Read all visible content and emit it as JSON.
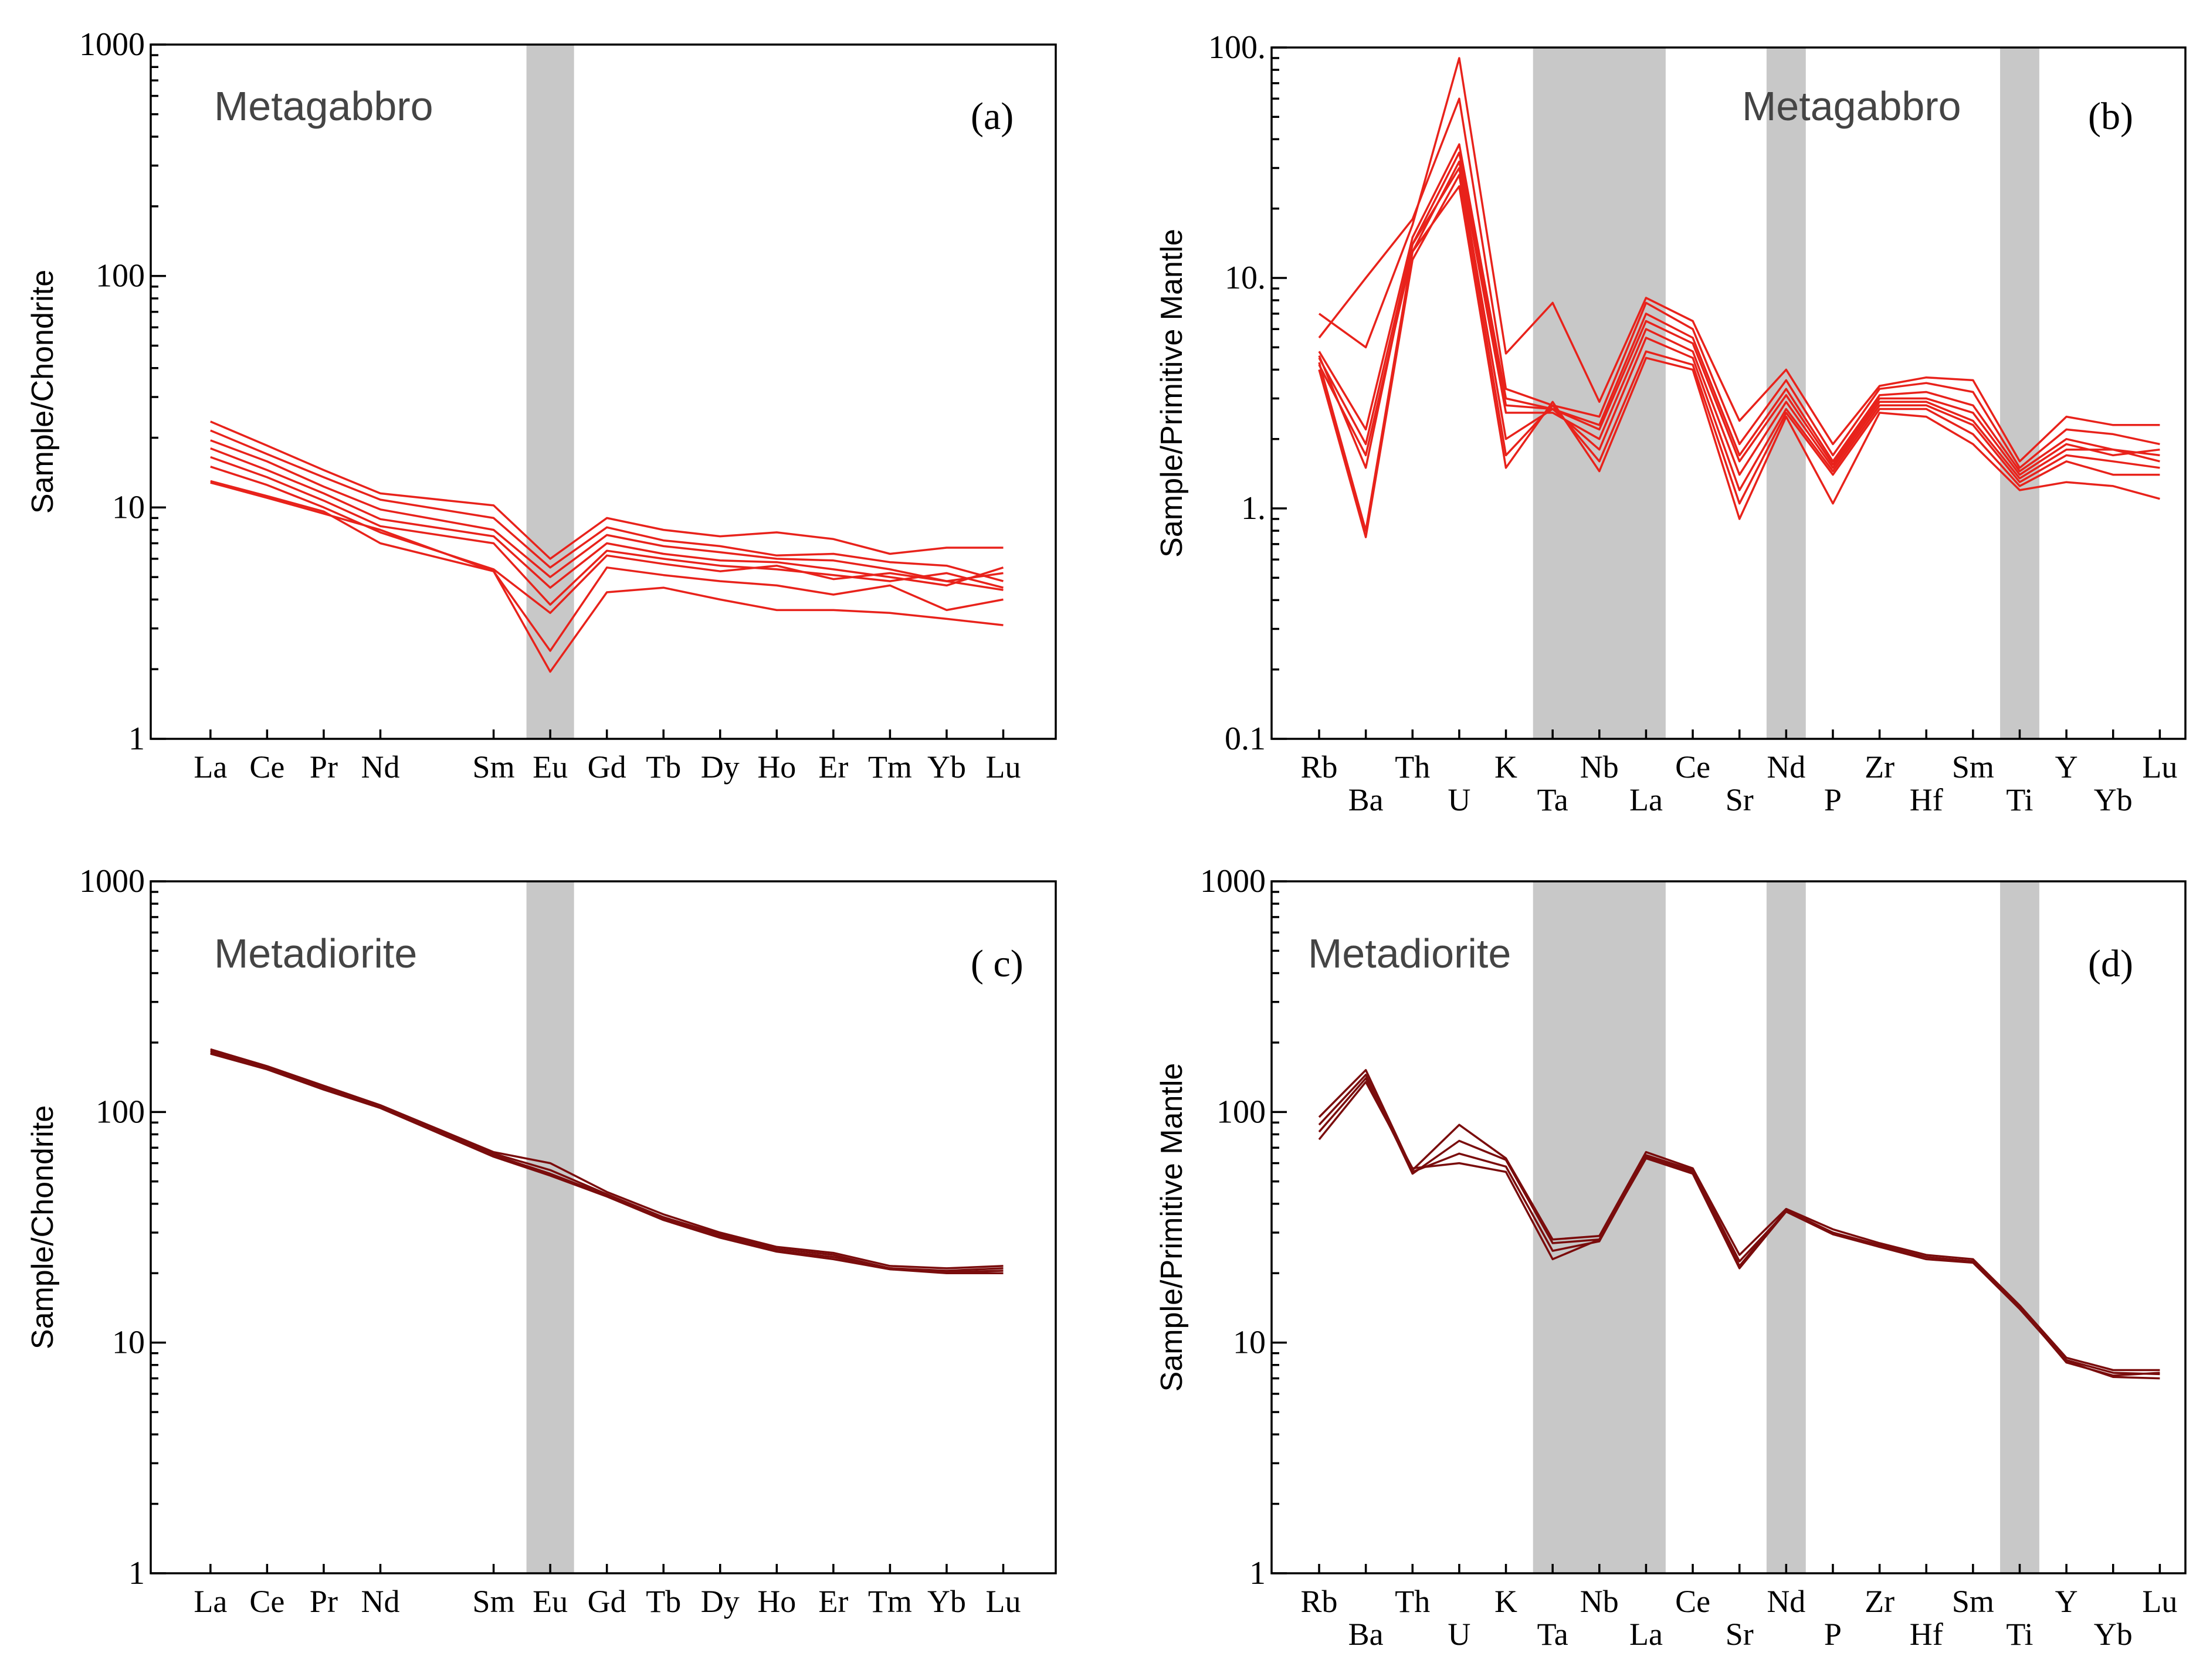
{
  "chart_data": [
    {
      "type": "line",
      "id": "a",
      "panel_label": "(a)",
      "rock_label": "Metagabbro",
      "ylabel": "Sample/Chondrite",
      "yscale": "log",
      "ylim": [
        1,
        1000
      ],
      "y_ticks": [
        "1",
        "10",
        "100",
        "1000"
      ],
      "x": [
        "La",
        "Ce",
        "Pr",
        "Nd",
        "Sm",
        "Eu",
        "Gd",
        "Tb",
        "Dy",
        "Ho",
        "Er",
        "Tm",
        "Yb",
        "Lu"
      ],
      "highlight": [
        "Eu"
      ],
      "color": "#e8221b",
      "series": [
        {
          "name": "s1",
          "values": [
            23.5,
            18.5,
            14.5,
            11.5,
            10.2,
            6.0,
            9.0,
            8.0,
            7.5,
            7.8,
            7.3,
            6.3,
            6.7,
            6.7
          ]
        },
        {
          "name": "s2",
          "values": [
            21.5,
            17.0,
            13.5,
            10.8,
            9.0,
            5.5,
            8.2,
            7.2,
            6.8,
            6.2,
            6.3,
            5.8,
            5.6,
            4.8
          ]
        },
        {
          "name": "s3",
          "values": [
            19.5,
            15.8,
            12.3,
            9.8,
            8.0,
            5.0,
            7.6,
            6.8,
            6.4,
            6.0,
            5.9,
            5.4,
            4.8,
            5.2
          ]
        },
        {
          "name": "s4",
          "values": [
            18.0,
            14.5,
            11.5,
            8.9,
            7.5,
            4.5,
            7.0,
            6.3,
            5.9,
            5.8,
            5.4,
            5.0,
            4.6,
            5.5
          ]
        },
        {
          "name": "s5",
          "values": [
            16.5,
            13.5,
            10.7,
            8.3,
            7.0,
            3.8,
            6.5,
            6.0,
            5.6,
            5.4,
            5.1,
            4.8,
            5.2,
            4.5
          ]
        },
        {
          "name": "s6",
          "values": [
            15.0,
            12.5,
            10.0,
            7.8,
            5.4,
            3.5,
            6.2,
            5.7,
            5.3,
            5.6,
            4.9,
            5.2,
            4.8,
            4.4
          ]
        },
        {
          "name": "s7",
          "values": [
            13.0,
            11.2,
            9.6,
            7.0,
            5.3,
            2.4,
            5.5,
            5.1,
            4.8,
            4.6,
            4.2,
            4.6,
            3.6,
            4.0
          ]
        },
        {
          "name": "s8",
          "values": [
            12.8,
            11.0,
            9.4,
            8.0,
            5.3,
            1.95,
            4.3,
            4.5,
            4.0,
            3.6,
            3.6,
            3.5,
            3.3,
            3.1
          ]
        }
      ]
    },
    {
      "type": "line",
      "id": "b",
      "panel_label": "(b)",
      "rock_label": "Metagabbro",
      "ylabel": "Sample/Primitive Mantle",
      "yscale": "log",
      "ylim": [
        0.1,
        100
      ],
      "y_ticks": [
        "0.1",
        "1.",
        "10.",
        "100."
      ],
      "x": [
        "Rb",
        "Ba",
        "Th",
        "U",
        "K",
        "Ta",
        "Nb",
        "La",
        "Ce",
        "Sr",
        "Nd",
        "P",
        "Zr",
        "Hf",
        "Sm",
        "Ti",
        "Y",
        "Yb",
        "Lu"
      ],
      "highlight": [
        "Ta",
        "Nb",
        "La",
        "Nd",
        "Ti"
      ],
      "color": "#e8221b",
      "series": [
        {
          "name": "s1",
          "values": [
            7.0,
            5.0,
            17,
            90,
            4.7,
            7.8,
            2.9,
            8.2,
            6.5,
            2.4,
            4.0,
            1.9,
            3.4,
            3.7,
            3.6,
            1.6,
            2.5,
            2.3,
            2.3
          ]
        },
        {
          "name": "s2",
          "values": [
            5.5,
            10,
            18,
            60,
            3.3,
            2.8,
            2.5,
            7.8,
            6.0,
            1.9,
            3.6,
            1.7,
            3.3,
            3.5,
            3.2,
            1.5,
            2.2,
            2.1,
            1.9
          ]
        },
        {
          "name": "s3",
          "values": [
            4.8,
            2.2,
            15,
            38,
            3.0,
            2.7,
            2.3,
            7.0,
            5.5,
            1.7,
            3.3,
            1.6,
            3.1,
            3.2,
            2.8,
            1.45,
            2.0,
            1.8,
            1.7
          ]
        },
        {
          "name": "s4",
          "values": [
            4.5,
            1.9,
            14,
            35,
            2.8,
            2.7,
            2.2,
            6.5,
            5.2,
            1.6,
            3.1,
            1.55,
            3.0,
            3.0,
            2.6,
            1.4,
            1.9,
            1.7,
            1.8
          ]
        },
        {
          "name": "s5",
          "values": [
            4.2,
            1.7,
            13,
            32,
            2.6,
            2.6,
            2.0,
            6.0,
            4.8,
            1.4,
            2.9,
            1.5,
            2.9,
            2.9,
            2.4,
            1.35,
            1.8,
            1.8,
            1.6
          ]
        },
        {
          "name": "s6",
          "values": [
            4.6,
            1.5,
            14,
            30,
            2.0,
            2.7,
            1.8,
            5.5,
            4.5,
            1.2,
            2.7,
            1.45,
            2.8,
            2.8,
            2.3,
            1.3,
            1.7,
            1.6,
            1.5
          ]
        },
        {
          "name": "s7",
          "values": [
            4.0,
            0.75,
            12,
            28,
            1.7,
            2.8,
            1.6,
            4.8,
            4.2,
            1.05,
            2.6,
            1.4,
            2.7,
            2.7,
            2.1,
            1.25,
            1.6,
            1.4,
            1.4
          ]
        },
        {
          "name": "s8",
          "values": [
            4.3,
            0.8,
            13,
            25,
            1.5,
            2.9,
            1.45,
            4.5,
            4.0,
            0.9,
            2.5,
            1.05,
            2.6,
            2.5,
            1.9,
            1.2,
            1.3,
            1.25,
            1.1
          ]
        }
      ]
    },
    {
      "type": "line",
      "id": "c",
      "panel_label": "( c)",
      "rock_label": "Metadiorite",
      "ylabel": "Sample/Chondrite",
      "yscale": "log",
      "ylim": [
        1,
        1000
      ],
      "y_ticks": [
        "1",
        "10",
        "100",
        "1000"
      ],
      "x": [
        "La",
        "Ce",
        "Pr",
        "Nd",
        "Sm",
        "Eu",
        "Gd",
        "Tb",
        "Dy",
        "Ho",
        "Er",
        "Tm",
        "Yb",
        "Lu"
      ],
      "highlight": [
        "Eu"
      ],
      "color": "#7a0c0c",
      "series": [
        {
          "name": "s1",
          "values": [
            187,
            158,
            130,
            107,
            67,
            60,
            45,
            36,
            30,
            26,
            24.5,
            21.5,
            21,
            21.5
          ]
        },
        {
          "name": "s2",
          "values": [
            184,
            156,
            128,
            106,
            66,
            56,
            44,
            35,
            29.5,
            25.5,
            24,
            21,
            20.5,
            21
          ]
        },
        {
          "name": "s3",
          "values": [
            181,
            154,
            126,
            105,
            65,
            54,
            43.5,
            34.5,
            29,
            25,
            23.5,
            21,
            20.2,
            20.5
          ]
        },
        {
          "name": "s4",
          "values": [
            179,
            153,
            125,
            104,
            64,
            53,
            43,
            34,
            28.5,
            24.8,
            23,
            20.8,
            20,
            20
          ]
        }
      ]
    },
    {
      "type": "line",
      "id": "d",
      "panel_label": "(d)",
      "rock_label": "Metadiorite",
      "ylabel": "Sample/Primitive Mantle",
      "yscale": "log",
      "ylim": [
        1,
        1000
      ],
      "y_ticks": [
        "1",
        "10",
        "100",
        "1000"
      ],
      "x": [
        "Rb",
        "Ba",
        "Th",
        "U",
        "K",
        "Ta",
        "Nb",
        "La",
        "Ce",
        "Sr",
        "Nd",
        "P",
        "Zr",
        "Hf",
        "Sm",
        "Ti",
        "Y",
        "Yb",
        "Lu"
      ],
      "highlight": [
        "Ta",
        "Nb",
        "La",
        "Nd",
        "Ti"
      ],
      "color": "#7a0c0c",
      "series": [
        {
          "name": "s1",
          "values": [
            95,
            152,
            56,
            88,
            63,
            28,
            29,
            67,
            57,
            24,
            38,
            31,
            27,
            24,
            23,
            14.5,
            8.6,
            7.6,
            7.6
          ]
        },
        {
          "name": "s2",
          "values": [
            88,
            145,
            54,
            75,
            62,
            27,
            28,
            65,
            56,
            22.5,
            37,
            30,
            26.5,
            23.5,
            22.5,
            14,
            8.4,
            7.4,
            7.3
          ]
        },
        {
          "name": "s3",
          "values": [
            82,
            140,
            55,
            66,
            58,
            25,
            27.5,
            64,
            55,
            21.5,
            37.5,
            30,
            26,
            23.5,
            22.5,
            14.2,
            8.2,
            7.2,
            7.4
          ]
        },
        {
          "name": "s4",
          "values": [
            76,
            135,
            57,
            60,
            55,
            23,
            28,
            63,
            54,
            21,
            37,
            29.5,
            26,
            23,
            22.2,
            14,
            8.3,
            7.1,
            7.0
          ]
        }
      ]
    }
  ]
}
